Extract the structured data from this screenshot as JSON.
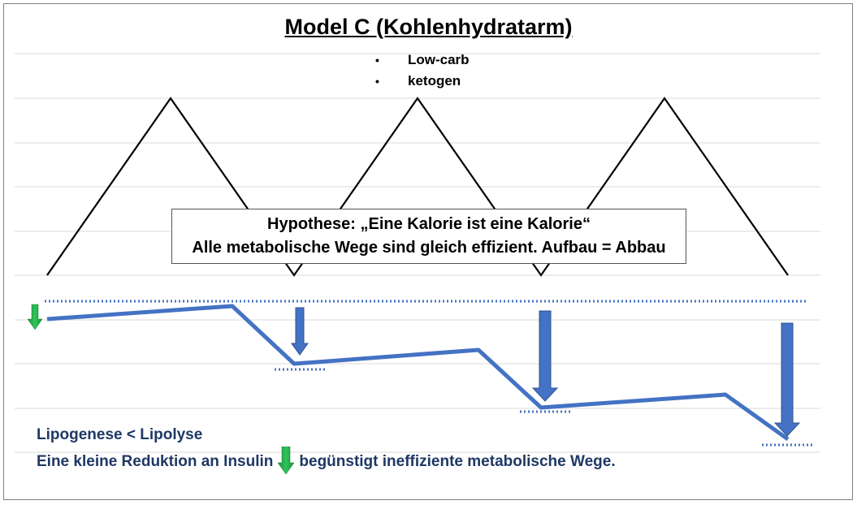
{
  "title": "Model C (Kohlenhydratarm)",
  "bullets": [
    "Low-carb",
    "ketogen"
  ],
  "hypothesis": {
    "line1": "Hypothese: „Eine Kalorie ist eine Kalorie“",
    "line2": "Alle metabolische Wege sind gleich effizient. Aufbau = Abbau"
  },
  "bottom": {
    "line1": "Lipogenese < Lipolyse",
    "line2_before": "Eine kleine Reduktion an Insulin",
    "line2_after": "begünstigt ineffiziente metabolische Wege."
  },
  "colors": {
    "blue_line": "#4472c4",
    "blue_arrow": "#4472c4",
    "green_arrow": "#22aa44",
    "dark_text": "#1f3864",
    "grid": "#d9d9d9"
  }
}
